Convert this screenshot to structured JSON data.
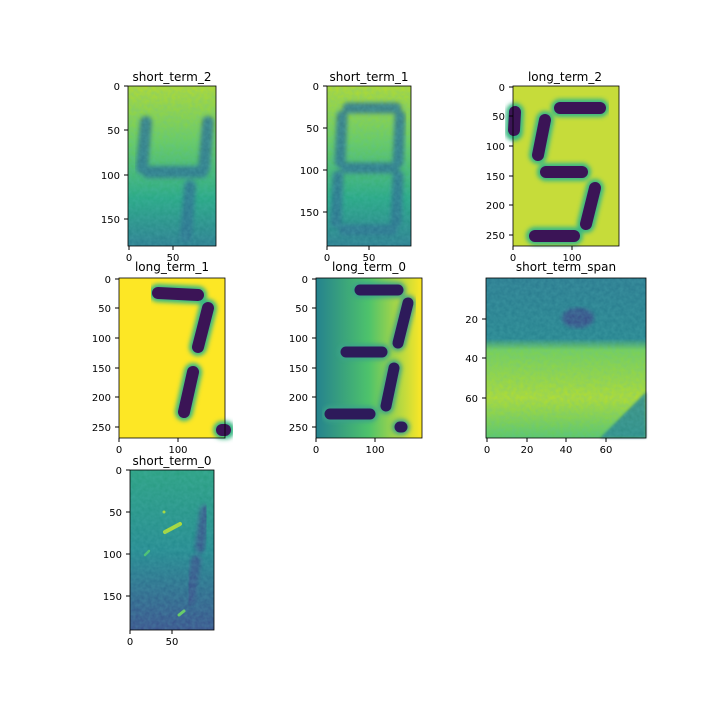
{
  "figure": {
    "panels": [
      {
        "id": "p1",
        "title": "short_term_2",
        "xticks": [
          "0",
          "50"
        ],
        "yticks": [
          "0",
          "50",
          "100",
          "150"
        ],
        "image_w": 95,
        "image_h": 180,
        "digit": "4",
        "style": "faint"
      },
      {
        "id": "p2",
        "title": "short_term_1",
        "xticks": [
          "0",
          "50"
        ],
        "yticks": [
          "0",
          "50",
          "100",
          "150"
        ],
        "image_w": 100,
        "image_h": 190,
        "digit": "8",
        "style": "faint"
      },
      {
        "id": "p3",
        "title": "long_term_2",
        "xticks": [
          "0",
          "100"
        ],
        "yticks": [
          "0",
          "50",
          "100",
          "150",
          "200",
          "250"
        ],
        "image_w": 180,
        "image_h": 265,
        "digit": "5",
        "style": "bold"
      },
      {
        "id": "p4",
        "title": "long_term_1",
        "xticks": [
          "0",
          "100"
        ],
        "yticks": [
          "0",
          "50",
          "100",
          "150",
          "200",
          "250"
        ],
        "image_w": 180,
        "image_h": 265,
        "digit": "7",
        "style": "bold"
      },
      {
        "id": "p5",
        "title": "long_term_0",
        "xticks": [
          "0",
          "100"
        ],
        "yticks": [
          "0",
          "50",
          "100",
          "150",
          "200",
          "250"
        ],
        "image_w": 180,
        "image_h": 265,
        "digit": "3",
        "style": "bold-gradient"
      },
      {
        "id": "p6",
        "title": "short_term_span",
        "xticks": [
          "0",
          "20",
          "40",
          "60"
        ],
        "yticks": [
          "20",
          "40",
          "60"
        ],
        "image_w": 80,
        "image_h": 80,
        "digit": "",
        "style": "noise"
      },
      {
        "id": "p7",
        "title": "short_term_0",
        "xticks": [
          "0",
          "50"
        ],
        "yticks": [
          "0",
          "50",
          "100",
          "150"
        ],
        "image_w": 100,
        "image_h": 190,
        "digit": "",
        "style": "dark-faint"
      }
    ],
    "colormap": "viridis"
  }
}
